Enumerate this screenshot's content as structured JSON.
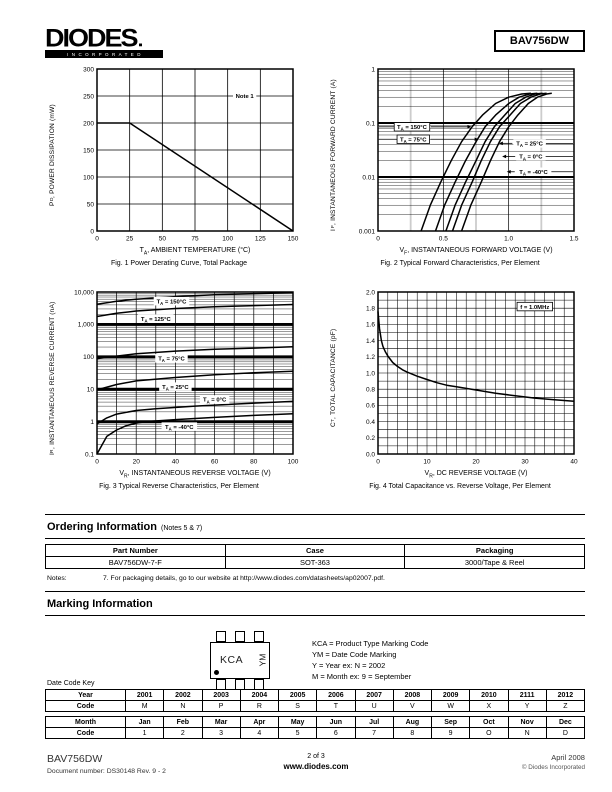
{
  "header": {
    "logo_text": "DIODES",
    "logo_sub": "INCORPORATED",
    "part_number": "BAV756DW"
  },
  "ordering": {
    "title": "Ordering Information",
    "title_note": "(Notes 5 & 7)",
    "headers": [
      "Part Number",
      "Case",
      "Packaging"
    ],
    "rows": [
      [
        "BAV756DW-7-F",
        "SOT-363",
        "3000/Tape & Reel"
      ]
    ],
    "notes_label": "Notes:",
    "note": "7. For packaging details, go to our website at http://www.diodes.com/datasheets/ap02007.pdf."
  },
  "marking": {
    "title": "Marking Information",
    "chip_code": "KCA",
    "date_code": "YM",
    "legend": [
      "KCA = Product Type Marking Code",
      "YM = Date Code Marking",
      "Y = Year ex: N = 2002",
      "M = Month ex: 9 = September"
    ]
  },
  "datecode": {
    "label": "Date Code Key",
    "year_row": [
      "Year",
      "2001",
      "2002",
      "2003",
      "2004",
      "2005",
      "2006",
      "2007",
      "2008",
      "2009",
      "2010",
      "2111",
      "2012"
    ],
    "year_code_row": [
      "Code",
      "M",
      "N",
      "P",
      "R",
      "S",
      "T",
      "U",
      "V",
      "W",
      "X",
      "Y",
      "Z"
    ],
    "month_row": [
      "Month",
      "Jan",
      "Feb",
      "Mar",
      "Apr",
      "May",
      "Jun",
      "Jul",
      "Aug",
      "Sep",
      "Oct",
      "Nov",
      "Dec"
    ],
    "month_code_row": [
      "Code",
      "1",
      "2",
      "3",
      "4",
      "5",
      "6",
      "7",
      "8",
      "9",
      "O",
      "N",
      "D"
    ]
  },
  "footer": {
    "part": "BAV756DW",
    "doc": "Document number: DS30148 Rev. 9 - 2",
    "page": "2 of 3",
    "site": "www.diodes.com",
    "date": "April 2008",
    "copyright": "© Diodes Incorporated"
  },
  "chart_data": [
    {
      "id": "fig1",
      "type": "line",
      "caption": "Fig. 1  Power Derating Curve, Total Package",
      "xlabel": "T^A^, AMBIENT TEMPERATURE (°C)",
      "ylabel": "P^D^, POWER DISSIPATION (mW)",
      "x": {
        "min": 0,
        "max": 150,
        "grid": [
          25,
          50,
          75,
          100,
          125
        ],
        "gw": 0.8,
        "ticks": [
          [
            0,
            "0"
          ],
          [
            25,
            "25"
          ],
          [
            50,
            "50"
          ],
          [
            75,
            "75"
          ],
          [
            100,
            "100"
          ],
          [
            125,
            "125"
          ],
          [
            150,
            "150"
          ]
        ]
      },
      "y": {
        "min": 0,
        "max": 300,
        "log": false,
        "grid": [
          50,
          100,
          150,
          200,
          250
        ],
        "gw": 0.8,
        "ticks": [
          [
            0,
            "0"
          ],
          [
            50,
            "50"
          ],
          [
            100,
            "100"
          ],
          [
            150,
            "150"
          ],
          [
            200,
            "200"
          ],
          [
            250,
            "250"
          ],
          [
            300,
            "300"
          ]
        ]
      },
      "series": [
        {
          "name": "power-derating",
          "points": [
            [
              0,
              200
            ],
            [
              25,
              200
            ],
            [
              150,
              0
            ]
          ]
        }
      ],
      "annotations": [
        {
          "text": "Note 1",
          "x": 113,
          "y": 250,
          "bg": true
        }
      ]
    },
    {
      "id": "fig2",
      "type": "line",
      "caption": "Fig. 2  Typical Forward Characteristics, Per Element",
      "xlabel": "V^F^, INSTANTANEOUS FORWARD VOLTAGE (V)",
      "ylabel": "I^F^, INSTANTANEOUS FORWARD CURRENT (A)",
      "x": {
        "min": 0,
        "max": 1.5,
        "grid": [
          0.5,
          1.0
        ],
        "minor": [
          0.25,
          0.75,
          1.25
        ],
        "gw": 0.7,
        "ticks": [
          [
            0,
            "0"
          ],
          [
            0.5,
            "0.5"
          ],
          [
            1.0,
            "1.0"
          ],
          [
            1.5,
            "1.5"
          ]
        ]
      },
      "y": {
        "min": 0.001,
        "max": 1,
        "log": true,
        "decadeW": 2.0,
        "ticks": [
          [
            1,
            "1"
          ],
          [
            0.1,
            "0.1"
          ],
          [
            0.01,
            "0.01"
          ],
          [
            0.001,
            "0.001"
          ]
        ]
      },
      "series": [
        {
          "name": "TA=150C",
          "points": [
            [
              0.33,
              0.001
            ],
            [
              0.4,
              0.003
            ],
            [
              0.48,
              0.008
            ],
            [
              0.56,
              0.02
            ],
            [
              0.64,
              0.045
            ],
            [
              0.72,
              0.085
            ],
            [
              0.8,
              0.14
            ],
            [
              0.9,
              0.23
            ],
            [
              1.0,
              0.3
            ],
            [
              1.1,
              0.345
            ],
            [
              1.17,
              0.355
            ]
          ]
        },
        {
          "name": "TA=75C",
          "points": [
            [
              0.44,
              0.001
            ],
            [
              0.51,
              0.003
            ],
            [
              0.59,
              0.008
            ],
            [
              0.67,
              0.02
            ],
            [
              0.75,
              0.045
            ],
            [
              0.82,
              0.085
            ],
            [
              0.9,
              0.14
            ],
            [
              1.0,
              0.23
            ],
            [
              1.08,
              0.3
            ],
            [
              1.16,
              0.345
            ],
            [
              1.22,
              0.355
            ]
          ]
        },
        {
          "name": "TA=25C",
          "points": [
            [
              0.52,
              0.001
            ],
            [
              0.59,
              0.003
            ],
            [
              0.67,
              0.008
            ],
            [
              0.75,
              0.02
            ],
            [
              0.82,
              0.045
            ],
            [
              0.89,
              0.085
            ],
            [
              0.97,
              0.14
            ],
            [
              1.05,
              0.23
            ],
            [
              1.13,
              0.3
            ],
            [
              1.2,
              0.345
            ],
            [
              1.26,
              0.355
            ]
          ]
        },
        {
          "name": "TA=0C",
          "points": [
            [
              0.57,
              0.001
            ],
            [
              0.64,
              0.003
            ],
            [
              0.72,
              0.008
            ],
            [
              0.79,
              0.02
            ],
            [
              0.86,
              0.045
            ],
            [
              0.93,
              0.085
            ],
            [
              1.01,
              0.14
            ],
            [
              1.09,
              0.23
            ],
            [
              1.17,
              0.3
            ],
            [
              1.24,
              0.345
            ],
            [
              1.29,
              0.355
            ]
          ]
        },
        {
          "name": "TA=-40C",
          "points": [
            [
              0.64,
              0.001
            ],
            [
              0.71,
              0.003
            ],
            [
              0.79,
              0.008
            ],
            [
              0.86,
              0.02
            ],
            [
              0.93,
              0.045
            ],
            [
              1.0,
              0.085
            ],
            [
              1.07,
              0.14
            ],
            [
              1.15,
              0.23
            ],
            [
              1.22,
              0.3
            ],
            [
              1.29,
              0.345
            ],
            [
              1.33,
              0.355
            ]
          ]
        }
      ],
      "annotations": [
        {
          "text": "T^A^ = 150°C",
          "x": 0.26,
          "y": 0.085,
          "box": true,
          "tail": "left",
          "arrow": [
            0.715,
            0.085
          ]
        },
        {
          "text": "T^A^ = 75°C",
          "x": 0.27,
          "y": 0.05,
          "box": true,
          "tail": "left",
          "arrow": [
            0.77,
            0.05
          ]
        },
        {
          "text": "T^A^ = 25°C",
          "x": 1.16,
          "y": 0.042,
          "bg": true,
          "tail": "right",
          "arrow": [
            0.925,
            0.042
          ]
        },
        {
          "text": "T^A^ = 0°C",
          "x": 1.17,
          "y": 0.024,
          "bg": true,
          "tail": "right",
          "arrow": [
            0.95,
            0.024
          ]
        },
        {
          "text": "T^A^ = -40°C",
          "x": 1.19,
          "y": 0.0125,
          "bg": true,
          "tail": "right",
          "arrow": [
            0.985,
            0.0125
          ]
        }
      ]
    },
    {
      "id": "fig3",
      "type": "line",
      "caption": "Fig. 3  Typical Reverse Characteristics, Per Element",
      "xlabel": "V^R^, INSTANTANEOUS REVERSE VOLTAGE (V)",
      "ylabel": "I^R^, INSTANTANEOUS REVERSE CURRENT (nA)",
      "x": {
        "min": 0,
        "max": 100,
        "grid": [
          10,
          20,
          30,
          40,
          50,
          60,
          70,
          80,
          90
        ],
        "gw": 0.7,
        "ticks": [
          [
            0,
            "0"
          ],
          [
            20,
            "20"
          ],
          [
            40,
            "40"
          ],
          [
            60,
            "60"
          ],
          [
            80,
            "80"
          ],
          [
            100,
            "100"
          ]
        ]
      },
      "y": {
        "min": 0.1,
        "max": 10000,
        "log": true,
        "decadeW": 2.8,
        "ticks": [
          [
            10000,
            "10,000"
          ],
          [
            1000,
            "1,000"
          ],
          [
            100,
            "100"
          ],
          [
            10,
            "10"
          ],
          [
            1,
            "1"
          ],
          [
            0.1,
            "0.1"
          ]
        ]
      },
      "series": [
        {
          "name": "TA=150C",
          "points": [
            [
              0,
              4200
            ],
            [
              10,
              5200
            ],
            [
              20,
              6000
            ],
            [
              40,
              7200
            ],
            [
              60,
              8200
            ],
            [
              80,
              8900
            ],
            [
              100,
              9500
            ]
          ]
        },
        {
          "name": "TA=125C",
          "points": [
            [
              0,
              1750
            ],
            [
              10,
              2200
            ],
            [
              20,
              2600
            ],
            [
              40,
              3100
            ],
            [
              60,
              3500
            ],
            [
              80,
              3800
            ],
            [
              100,
              4100
            ]
          ]
        },
        {
          "name": "TA=75C",
          "points": [
            [
              0,
              88
            ],
            [
              10,
              105
            ],
            [
              20,
              125
            ],
            [
              40,
              150
            ],
            [
              60,
              170
            ],
            [
              80,
              185
            ],
            [
              100,
              205
            ]
          ]
        },
        {
          "name": "TA=25C",
          "points": [
            [
              0,
              9.5
            ],
            [
              10,
              14
            ],
            [
              20,
              18
            ],
            [
              40,
              23
            ],
            [
              60,
              28
            ],
            [
              80,
              32
            ],
            [
              100,
              36
            ]
          ]
        },
        {
          "name": "TA=0C",
          "points": [
            [
              0,
              0.85
            ],
            [
              5,
              1.3
            ],
            [
              10,
              1.7
            ],
            [
              20,
              2.2
            ],
            [
              30,
              2.5
            ],
            [
              50,
              3.0
            ],
            [
              75,
              3.6
            ],
            [
              100,
              4.2
            ]
          ]
        },
        {
          "name": "TA=-40C",
          "points": [
            [
              0,
              0.1
            ],
            [
              5,
              0.35
            ],
            [
              10,
              0.55
            ],
            [
              15,
              0.75
            ],
            [
              20,
              0.9
            ],
            [
              25,
              1.0
            ],
            [
              40,
              1.15
            ],
            [
              60,
              1.35
            ],
            [
              80,
              1.55
            ],
            [
              100,
              1.75
            ]
          ]
        }
      ],
      "annotations": [
        {
          "text": "T^A^ = 150°C",
          "x": 38,
          "y": 5200,
          "bg": true
        },
        {
          "text": "T^A^ = 125°C",
          "x": 30,
          "y": 1500,
          "bg": true
        },
        {
          "text": "T^A^ = 75°C",
          "x": 38,
          "y": 90,
          "bg": true
        },
        {
          "text": "T^A^ = 25°C",
          "x": 40,
          "y": 12,
          "bg": true
        },
        {
          "text": "T^A^ = 0°C",
          "x": 60,
          "y": 4.8,
          "bg": true
        },
        {
          "text": "T^A^ = -40°C",
          "x": 42,
          "y": 0.7,
          "bg": true
        }
      ]
    },
    {
      "id": "fig4",
      "type": "line",
      "caption": "Fig. 4  Total Capacitance vs. Reverse Voltage, Per Element",
      "xlabel": "V^R^, DC REVERSE VOLTAGE (V)",
      "ylabel": "C^T^, TOTAL CAPACITANCE (pF)",
      "x": {
        "min": 0,
        "max": 40,
        "grid": [
          2,
          4,
          6,
          8,
          10,
          12,
          14,
          16,
          18,
          20,
          22,
          24,
          26,
          28,
          30,
          32,
          34,
          36,
          38
        ],
        "gw": 0.55,
        "ticks": [
          [
            0,
            "0"
          ],
          [
            10,
            "10"
          ],
          [
            20,
            "20"
          ],
          [
            30,
            "30"
          ],
          [
            40,
            "40"
          ]
        ]
      },
      "y": {
        "min": 0,
        "max": 2,
        "log": false,
        "grid": [
          0.1,
          0.2,
          0.3,
          0.4,
          0.5,
          0.6,
          0.7,
          0.8,
          0.9,
          1.0,
          1.1,
          1.2,
          1.3,
          1.4,
          1.5,
          1.6,
          1.7,
          1.8,
          1.9
        ],
        "gw": 0.55,
        "ticks": [
          [
            0,
            "0.0"
          ],
          [
            0.2,
            "0.2"
          ],
          [
            0.4,
            "0.4"
          ],
          [
            0.6,
            "0.6"
          ],
          [
            0.8,
            "0.8"
          ],
          [
            1,
            "1.0"
          ],
          [
            1.2,
            "1.2"
          ],
          [
            1.4,
            "1.4"
          ],
          [
            1.6,
            "1.6"
          ],
          [
            1.8,
            "1.8"
          ],
          [
            2,
            "2.0"
          ]
        ]
      },
      "series": [
        {
          "name": "total-capacitance",
          "points": [
            [
              0,
              1.76
            ],
            [
              0.3,
              1.55
            ],
            [
              0.7,
              1.4
            ],
            [
              1,
              1.33
            ],
            [
              1.5,
              1.26
            ],
            [
              2,
              1.21
            ],
            [
              3,
              1.13
            ],
            [
              4,
              1.08
            ],
            [
              5,
              1.04
            ],
            [
              6,
              1.01
            ],
            [
              8,
              0.96
            ],
            [
              10,
              0.92
            ],
            [
              12,
              0.88
            ],
            [
              14,
              0.85
            ],
            [
              16,
              0.83
            ],
            [
              18,
              0.81
            ],
            [
              20,
              0.79
            ],
            [
              24,
              0.75
            ],
            [
              28,
              0.72
            ],
            [
              32,
              0.69
            ],
            [
              36,
              0.67
            ],
            [
              40,
              0.65
            ]
          ]
        }
      ],
      "annotations": [
        {
          "text": "f = 1.0MHz",
          "x": 32,
          "y": 1.82,
          "box": true
        }
      ]
    }
  ]
}
